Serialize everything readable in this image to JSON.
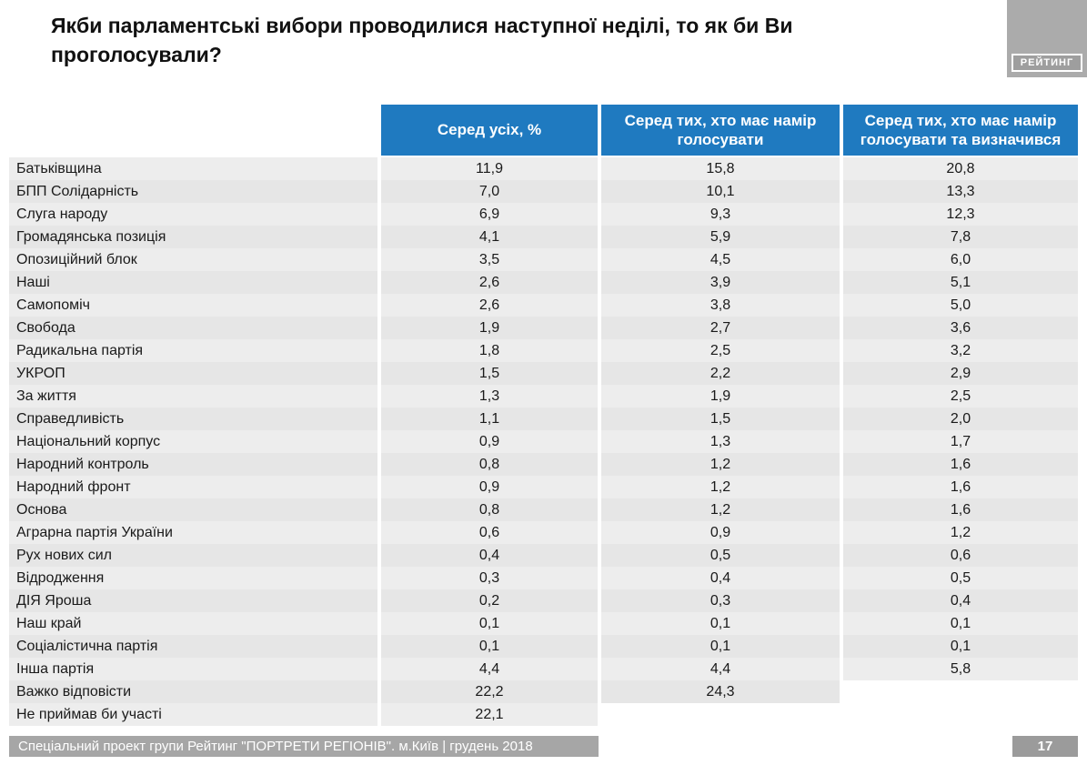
{
  "title": "Якби парламентські вибори проводилися наступної неділі, то як би Ви проголосували?",
  "logo": {
    "text": "РЕЙТИНГ"
  },
  "footer": {
    "text": "Спеціальний проект групи Рейтинг \"ПОРТРЕТИ РЕГІОНІВ\". м.Київ | грудень 2018",
    "page_number": "17"
  },
  "colors": {
    "header_blue": "#1f7ac0",
    "bar_gray": "#a6a6a6",
    "row_odd": "#ededed",
    "row_even": "#e6e6e6"
  },
  "chart_data": {
    "type": "table",
    "title": "Якби парламентські вибори проводилися наступної неділі, то як би Ви проголосували?",
    "columns": [
      "Серед усіх, %",
      "Серед тих, хто має намір голосувати",
      "Серед тих, хто має намір голосувати та визначився"
    ],
    "rows": [
      {
        "label": "Батьківщина",
        "values": [
          "11,9",
          "15,8",
          "20,8"
        ]
      },
      {
        "label": "БПП Солідарність",
        "values": [
          "7,0",
          "10,1",
          "13,3"
        ]
      },
      {
        "label": "Слуга народу",
        "values": [
          "6,9",
          "9,3",
          "12,3"
        ]
      },
      {
        "label": "Громадянська позиція",
        "values": [
          "4,1",
          "5,9",
          "7,8"
        ]
      },
      {
        "label": "Опозиційний блок",
        "values": [
          "3,5",
          "4,5",
          "6,0"
        ]
      },
      {
        "label": "Наші",
        "values": [
          "2,6",
          "3,9",
          "5,1"
        ]
      },
      {
        "label": "Самопоміч",
        "values": [
          "2,6",
          "3,8",
          "5,0"
        ]
      },
      {
        "label": "Свобода",
        "values": [
          "1,9",
          "2,7",
          "3,6"
        ]
      },
      {
        "label": "Радикальна партія",
        "values": [
          "1,8",
          "2,5",
          "3,2"
        ]
      },
      {
        "label": "УКРОП",
        "values": [
          "1,5",
          "2,2",
          "2,9"
        ]
      },
      {
        "label": "За життя",
        "values": [
          "1,3",
          "1,9",
          "2,5"
        ]
      },
      {
        "label": "Справедливість",
        "values": [
          "1,1",
          "1,5",
          "2,0"
        ]
      },
      {
        "label": "Національний корпус",
        "values": [
          "0,9",
          "1,3",
          "1,7"
        ]
      },
      {
        "label": "Народний контроль",
        "values": [
          "0,8",
          "1,2",
          "1,6"
        ]
      },
      {
        "label": "Народний фронт",
        "values": [
          "0,9",
          "1,2",
          "1,6"
        ]
      },
      {
        "label": "Основа",
        "values": [
          "0,8",
          "1,2",
          "1,6"
        ]
      },
      {
        "label": "Аграрна партія України",
        "values": [
          "0,6",
          "0,9",
          "1,2"
        ]
      },
      {
        "label": "Рух нових сил",
        "values": [
          "0,4",
          "0,5",
          "0,6"
        ]
      },
      {
        "label": "Відродження",
        "values": [
          "0,3",
          "0,4",
          "0,5"
        ]
      },
      {
        "label": "ДІЯ Яроша",
        "values": [
          "0,2",
          "0,3",
          "0,4"
        ]
      },
      {
        "label": "Наш край",
        "values": [
          "0,1",
          "0,1",
          "0,1"
        ]
      },
      {
        "label": "Соціалістична партія",
        "values": [
          "0,1",
          "0,1",
          "0,1"
        ]
      },
      {
        "label": "Інша партія",
        "values": [
          "4,4",
          "4,4",
          "5,8"
        ]
      },
      {
        "label": "Важко відповісти",
        "values": [
          "22,2",
          "24,3",
          ""
        ]
      },
      {
        "label": "Не приймав би участі",
        "values": [
          "22,1",
          "",
          ""
        ]
      }
    ]
  }
}
